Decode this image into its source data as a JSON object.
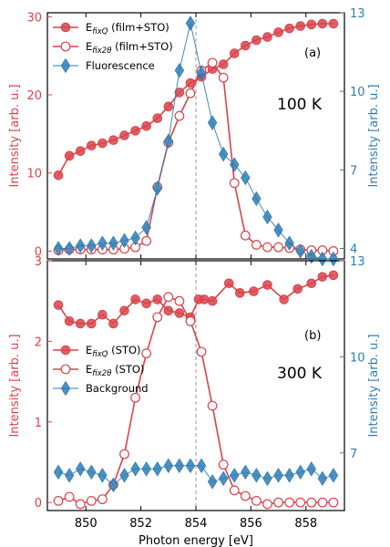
{
  "colors": {
    "red": "#d9434a",
    "blue": "#2f7db5",
    "axis": "#000000",
    "guide": "#999999"
  },
  "xaxis": {
    "label": "Photon energy [eV]",
    "ticks": [
      850,
      852,
      854,
      856,
      858
    ],
    "range": [
      848.6,
      859.4
    ]
  },
  "guide_line_x": 854,
  "chart_data": [
    {
      "type": "line",
      "panel_label": "(a)",
      "temperature": "100 K",
      "ylabel_left": "Intensity [arb. u.]",
      "ylabel_right": "Intensity [arb. u.]",
      "ylim_left": [
        -1,
        30.5
      ],
      "yticks_left": [
        0,
        10,
        20,
        30
      ],
      "ylim_right": [
        3.6,
        13
      ],
      "yticks_right": [
        4,
        7,
        10,
        13
      ],
      "legend_position": "top-left",
      "x": [
        849,
        849.4,
        849.8,
        850.2,
        850.6,
        851,
        851.4,
        851.8,
        852.2,
        852.6,
        853,
        853.4,
        853.8,
        854.2,
        854.6,
        855,
        855.4,
        855.8,
        856.2,
        856.6,
        857,
        857.4,
        857.8,
        858.2,
        858.6,
        859
      ],
      "series": [
        {
          "name": "E_fixQ (film+STO)",
          "axis": "left",
          "marker": "filled-circle",
          "values": [
            9.7,
            12.2,
            12.8,
            13.5,
            13.8,
            14.2,
            14.8,
            15.4,
            16.0,
            17.0,
            18.5,
            20.3,
            21.5,
            22.3,
            23.3,
            23.9,
            25.3,
            26.3,
            27.0,
            27.4,
            28.0,
            28.5,
            28.8,
            29.0,
            29.1,
            29.1
          ]
        },
        {
          "name": "E_fix2θ (film+STO)",
          "axis": "left",
          "marker": "open-circle",
          "values": [
            0.1,
            0.2,
            0.2,
            0.2,
            0.2,
            0.2,
            0.3,
            0.5,
            1.3,
            8.2,
            13.9,
            17.3,
            20.2,
            23.1,
            24.1,
            22.2,
            8.7,
            2.0,
            0.8,
            0.5,
            0.5,
            0.4,
            0.2,
            0.1,
            0.1,
            0.0
          ]
        },
        {
          "name": "Fluorescence",
          "axis": "right",
          "marker": "diamond",
          "x": [
            849,
            849.4,
            849.8,
            850.2,
            850.6,
            851,
            851.4,
            851.8,
            852.2,
            852.6,
            853,
            853.4,
            853.8,
            854.2,
            854.6,
            855,
            855.4,
            855.8,
            856.2,
            856.6,
            857,
            857.4,
            857.8,
            858.2,
            858.6,
            859
          ],
          "values": [
            4.0,
            4.0,
            4.1,
            4.1,
            4.2,
            4.2,
            4.3,
            4.4,
            4.8,
            6.3,
            8.1,
            10.8,
            12.6,
            10.7,
            8.8,
            7.6,
            7.2,
            6.7,
            5.9,
            5.2,
            4.7,
            4.2,
            3.9,
            3.7,
            3.6,
            3.6
          ]
        }
      ]
    },
    {
      "type": "line",
      "panel_label": "(b)",
      "temperature": "300 K",
      "ylabel_left": "Intensity [arb. u.]",
      "ylabel_right": "Intensity [arb. u.]",
      "ylim_left": [
        -0.1,
        3.0
      ],
      "yticks_left": [
        0,
        1,
        2,
        3
      ],
      "ylim_right": [
        5.2,
        13
      ],
      "yticks_right": [
        7,
        10,
        13
      ],
      "legend_position": "center-left",
      "x": [
        849,
        849.4,
        849.8,
        850.2,
        850.6,
        851,
        851.4,
        851.8,
        852.2,
        852.6,
        853,
        853.4,
        853.8,
        854.2,
        854.6,
        855,
        855.4,
        855.8,
        856.2,
        856.6,
        857,
        857.4,
        857.8,
        858.2,
        858.6,
        859
      ],
      "series": [
        {
          "name": "E_fixQ (STO)",
          "axis": "left",
          "marker": "filled-circle",
          "x": [
            849,
            849.4,
            849.8,
            850.2,
            850.6,
            851,
            851.4,
            851.8,
            852.2,
            852.6,
            853,
            853.4,
            853.8,
            854.1,
            854.3,
            854.6,
            855.2,
            855.6,
            856.1,
            856.6,
            857.2,
            857.7,
            858.2,
            858.6,
            859
          ],
          "values": [
            2.45,
            2.25,
            2.22,
            2.22,
            2.33,
            2.22,
            2.38,
            2.52,
            2.47,
            2.52,
            2.38,
            2.35,
            2.3,
            2.52,
            2.52,
            2.5,
            2.72,
            2.6,
            2.62,
            2.7,
            2.52,
            2.65,
            2.72,
            2.8,
            2.82
          ]
        },
        {
          "name": "E_fix2θ (STO)",
          "axis": "left",
          "marker": "open-circle",
          "x": [
            849,
            849.4,
            849.8,
            850.2,
            850.6,
            851,
            851.4,
            851.8,
            852.2,
            852.6,
            853,
            853.4,
            853.8,
            854.2,
            854.6,
            855,
            855.4,
            855.8,
            856.2,
            856.6,
            857,
            857.4,
            857.8,
            858.2,
            858.6,
            859
          ],
          "values": [
            0.02,
            0.07,
            -0.02,
            0.02,
            0.04,
            0.22,
            0.6,
            1.3,
            1.85,
            2.3,
            2.55,
            2.5,
            2.25,
            1.87,
            1.2,
            0.47,
            0.15,
            0.08,
            0.02,
            -0.02,
            0.0,
            0.0,
            0.0,
            0.0,
            0.0,
            0.0
          ]
        },
        {
          "name": "Background",
          "axis": "right",
          "marker": "diamond",
          "x": [
            849,
            849.4,
            849.8,
            850.2,
            850.6,
            851,
            851.4,
            851.8,
            852.2,
            852.6,
            853,
            853.4,
            853.8,
            854.2,
            854.6,
            855,
            855.4,
            855.8,
            856.2,
            856.6,
            857,
            857.4,
            857.8,
            858.2,
            858.6,
            859
          ],
          "values": [
            6.4,
            6.3,
            6.5,
            6.4,
            6.3,
            6.0,
            6.3,
            6.5,
            6.5,
            6.5,
            6.6,
            6.6,
            6.6,
            6.6,
            6.1,
            6.2,
            6.3,
            6.4,
            6.3,
            6.2,
            6.3,
            6.3,
            6.4,
            6.5,
            6.2,
            6.3
          ]
        }
      ]
    }
  ]
}
